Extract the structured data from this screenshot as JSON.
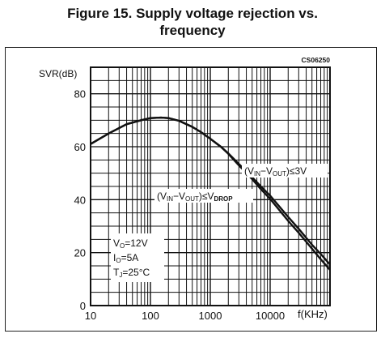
{
  "figure": {
    "title_line1": "Figure 15. Supply voltage rejection vs.",
    "title_line2": "frequency",
    "code": "CS06250"
  },
  "chart_data": {
    "type": "line",
    "title": "Figure 15. Supply voltage rejection vs. frequency",
    "xlabel": "f(KHz)",
    "ylabel": "SVR(dB)",
    "xscale": "log",
    "xlim": [
      10,
      100000
    ],
    "ylim": [
      0,
      90
    ],
    "x_ticks": [
      10,
      100,
      1000,
      10000
    ],
    "x_tick_labels": [
      "10",
      "100",
      "1000",
      "10000"
    ],
    "y_ticks": [
      0,
      20,
      40,
      60,
      80
    ],
    "y_tick_labels": [
      "0",
      "20",
      "40",
      "60",
      "80"
    ],
    "grid": true,
    "series": [
      {
        "name": "(V_IN−V_OUT)≤3V",
        "x": [
          10,
          20,
          40,
          70,
          100,
          150,
          200,
          300,
          500,
          700,
          1000,
          1500,
          2000,
          3000,
          5000,
          7000,
          10000,
          20000,
          30000,
          50000,
          70000,
          100000
        ],
        "values": [
          61,
          65,
          68.5,
          70,
          70.8,
          71,
          70.8,
          69.8,
          67.5,
          65.5,
          63,
          60,
          57.5,
          53.5,
          48.5,
          45,
          41.5,
          33.5,
          29,
          23,
          19.5,
          15.5
        ]
      },
      {
        "name": "(V_IN−V_OUT)≤V_DROP",
        "x": [
          10,
          20,
          40,
          70,
          100,
          150,
          200,
          300,
          500,
          700,
          1000,
          1500,
          2000,
          3000,
          5000,
          7000,
          10000,
          20000,
          30000,
          50000,
          70000,
          100000
        ],
        "values": [
          61,
          65,
          68.5,
          70,
          70.8,
          71,
          70.8,
          69.8,
          67.5,
          65.5,
          63,
          60,
          57.3,
          53,
          47.8,
          44,
          40.3,
          32,
          27.5,
          21.5,
          17.5,
          13.5
        ]
      }
    ],
    "annotations": {
      "label_3v": {
        "main": "(V",
        "sub1": "IN",
        "mid": "−V",
        "sub2": "OUT",
        "tail": ")≤3V"
      },
      "label_drop": {
        "main": "(V",
        "sub1": "IN",
        "mid": "−V",
        "sub2": "OUT",
        "tail": ")≤V",
        "sub3": "DROP"
      },
      "conditions": [
        {
          "main": "V",
          "sub": "O",
          "tail": "=12V"
        },
        {
          "main": "I",
          "sub": "O",
          "tail": "=5A"
        },
        {
          "main": "T",
          "sub": "J",
          "tail": "=25°C"
        }
      ]
    }
  }
}
